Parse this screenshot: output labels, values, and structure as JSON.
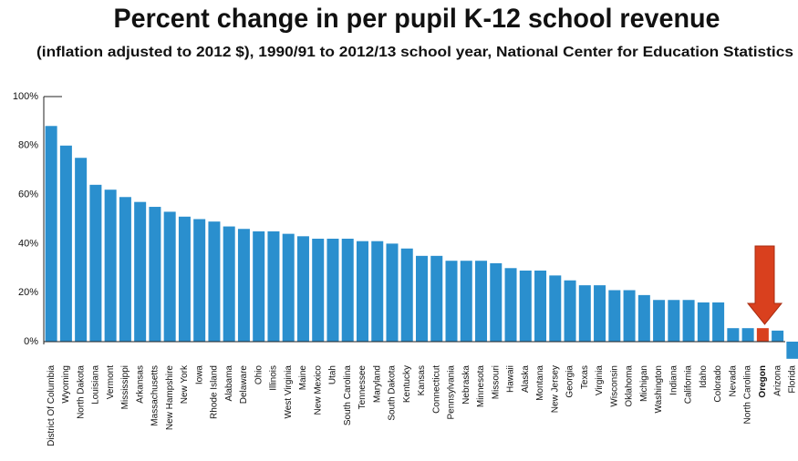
{
  "chart_data": {
    "type": "bar",
    "title": "Percent change in per pupil K-12 school revenue",
    "subtitle": "(inflation adjusted to 2012 $), 1990/91 to 2012/13 school year, National Center for Education Statistics",
    "categories": [
      "District Of Columbia",
      "Wyoming",
      "North Dakota",
      "Louisiana",
      "Vermont",
      "Mississippi",
      "Arkansas",
      "Massachusetts",
      "New Hampshire",
      "New York",
      "Iowa",
      "Rhode Island",
      "Alabama",
      "Delaware",
      "Ohio",
      "Illinois",
      "West Virginia",
      "Maine",
      "New Mexico",
      "Utah",
      "South Carolina",
      "Tennessee",
      "Maryland",
      "South Dakota",
      "Kentucky",
      "Kansas",
      "Connecticut",
      "Pennsylvania",
      "Nebraska",
      "Minnesota",
      "Missouri",
      "Hawaii",
      "Alaska",
      "Montana",
      "New Jersey",
      "Georgia",
      "Texas",
      "Virginia",
      "Wisconsin",
      "Oklahoma",
      "Michigan",
      "Washington",
      "Indiana",
      "California",
      "Idaho",
      "Colorado",
      "Nevada",
      "North Carolina",
      "Oregon",
      "Arizona",
      "Florida"
    ],
    "values": [
      88,
      80,
      75,
      64,
      62,
      59,
      57,
      55,
      53,
      51,
      50,
      49,
      47,
      46,
      45,
      45,
      44,
      43,
      42,
      42,
      42,
      41,
      41,
      40,
      38,
      35,
      35,
      33,
      33,
      33,
      32,
      30,
      29,
      29,
      27,
      25,
      23,
      23,
      21,
      21,
      19,
      17,
      17,
      17,
      16,
      16,
      5.5,
      5.5,
      5.5,
      4.5,
      -7
    ],
    "color": "#2a8fce",
    "highlight": "Oregon",
    "highlight_color": "#d9401e",
    "ylim": [
      -8,
      100
    ],
    "yticks": [
      {
        "value": 0,
        "label": "0%"
      },
      {
        "value": 20,
        "label": "20%"
      },
      {
        "value": 40,
        "label": "40%"
      },
      {
        "value": 60,
        "label": "60%"
      },
      {
        "value": 80,
        "label": "80%"
      },
      {
        "value": 100,
        "label": "100%"
      }
    ]
  }
}
